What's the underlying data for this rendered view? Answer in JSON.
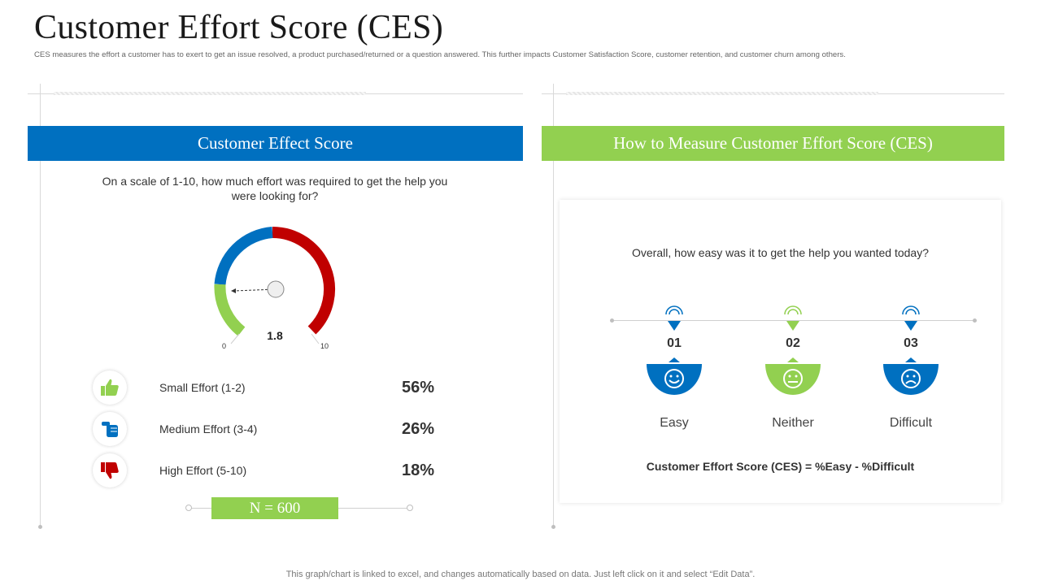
{
  "page": {
    "title": "Customer Effort Score (CES)",
    "subtitle": "CES measures the effort a customer has to exert to get an issue resolved, a product purchased/returned or a question answered. This further impacts Customer Satisfaction Score, customer retention, and customer churn among others.",
    "footer": "This graph/chart is linked to excel, and changes automatically based on data. Just left click on it and select “Edit Data”."
  },
  "left_panel": {
    "header": "Customer Effect Score",
    "question": "On a scale of 1-10, how much effort was required to get the help you were looking for?",
    "gauge": {
      "value": 1.8,
      "value_label": "1.8",
      "min_label": "0",
      "max_label": "10",
      "colors": {
        "low": "#92d050",
        "mid": "#0070c0",
        "high": "#c00000"
      }
    },
    "efforts": [
      {
        "label": "Small Effort (1-2)",
        "percent": "56%",
        "icon": "thumbs-up-icon",
        "color": "#92d050"
      },
      {
        "label": "Medium Effort (3-4)",
        "percent": "26%",
        "icon": "hand-fist-icon",
        "color": "#0070c0"
      },
      {
        "label": "High Effort (5-10)",
        "percent": "18%",
        "icon": "thumbs-down-icon",
        "color": "#c00000"
      }
    ],
    "sample_size": "N = 600"
  },
  "right_panel": {
    "header": "How to Measure Customer Effort Score (CES)",
    "question": "Overall, how easy was it to get the help you wanted today?",
    "options": [
      {
        "number": "01",
        "label": "Easy",
        "icon": "smiley-happy-icon",
        "color": "#0070c0"
      },
      {
        "number": "02",
        "label": "Neither",
        "icon": "smiley-neutral-icon",
        "color": "#92d050"
      },
      {
        "number": "03",
        "label": "Difficult",
        "icon": "smiley-sad-icon",
        "color": "#0070c0"
      }
    ],
    "formula": "Customer Effort Score (CES) = %Easy - %Difficult"
  }
}
